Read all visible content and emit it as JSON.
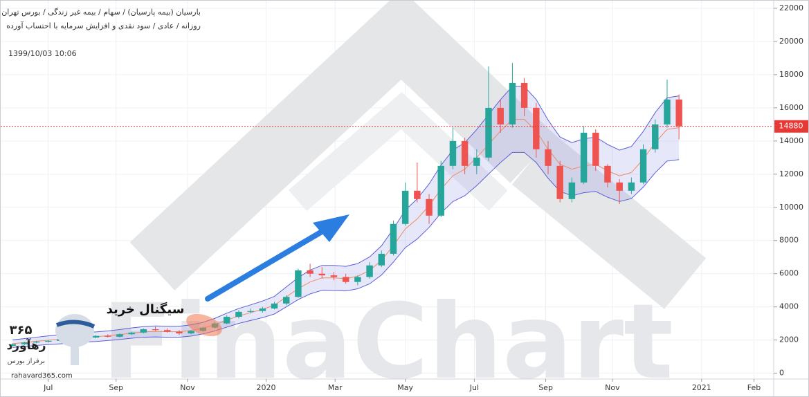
{
  "header": {
    "symbol": "بارسیان (بیمه پارسیان) / سهام / بیمه غیر زندگی / بورس تهران",
    "settings": "روزانه / عادی / سود نقدی و افزایش سرمایه با احتساب آورده",
    "timestamp": "1399/10/03 10:06"
  },
  "annotation": "سیگنال خرید",
  "watermark": "FinaChart",
  "logo": {
    "number": "۳۶۵",
    "name": "رهآورد",
    "tagline": "برفراز بورس",
    "url": "rahavard365.com"
  },
  "chart_data": {
    "type": "candlestick",
    "x": [
      -30,
      -20,
      -10,
      0,
      10,
      20,
      30,
      40,
      50,
      60,
      70,
      80,
      90,
      100,
      110,
      120,
      130,
      140,
      150,
      160,
      170,
      180,
      190,
      200,
      210,
      220,
      230,
      240,
      250,
      260,
      270,
      280,
      290,
      300,
      310,
      320,
      330,
      340,
      350,
      360,
      370,
      380,
      390,
      400,
      410,
      420,
      430,
      440,
      450,
      460,
      470,
      480,
      490,
      500,
      510,
      520,
      530
    ],
    "open": [
      1650,
      1750,
      1850,
      1900,
      1950,
      2050,
      2000,
      2150,
      2250,
      2200,
      2350,
      2450,
      2650,
      2600,
      2500,
      2400,
      2550,
      2750,
      3000,
      3400,
      3700,
      3750,
      3900,
      4200,
      4600,
      6200,
      6000,
      5900,
      5800,
      5500,
      5800,
      6500,
      7200,
      9000,
      11000,
      10500,
      9500,
      12500,
      14000,
      12500,
      13000,
      16000,
      15000,
      17500,
      16000,
      13500,
      12500,
      10500,
      11500,
      14500,
      12500,
      11500,
      11000,
      11500,
      13500,
      15000,
      16500
    ],
    "high": [
      1800,
      1900,
      1950,
      2000,
      2100,
      2150,
      2200,
      2300,
      2350,
      2400,
      2500,
      2700,
      2800,
      2700,
      2600,
      2600,
      2800,
      3100,
      3500,
      3800,
      3900,
      4000,
      4300,
      4700,
      6300,
      6600,
      6400,
      6100,
      6000,
      5900,
      6700,
      7400,
      9200,
      11500,
      12700,
      10800,
      12800,
      14800,
      14200,
      13500,
      18500,
      16500,
      18700,
      17800,
      16300,
      14000,
      12800,
      11800,
      14900,
      14700,
      12600,
      11700,
      11800,
      13800,
      15300,
      17700,
      16800
    ],
    "low": [
      1600,
      1700,
      1800,
      1850,
      1900,
      1950,
      1950,
      2100,
      2150,
      2150,
      2300,
      2400,
      2550,
      2450,
      2300,
      2350,
      2500,
      2700,
      2950,
      3300,
      3600,
      3650,
      3850,
      4100,
      4550,
      5800,
      5700,
      5600,
      5400,
      5300,
      5700,
      6400,
      7100,
      8900,
      10300,
      9000,
      9400,
      12300,
      12000,
      12000,
      12800,
      14500,
      14800,
      15500,
      13000,
      12000,
      10300,
      10300,
      11400,
      12200,
      11200,
      10200,
      10800,
      11400,
      13300,
      14800,
      14100
    ],
    "close": [
      1750,
      1850,
      1900,
      1950,
      2050,
      2000,
      2150,
      2250,
      2200,
      2350,
      2450,
      2650,
      2600,
      2500,
      2400,
      2550,
      2750,
      3000,
      3400,
      3700,
      3750,
      3900,
      4200,
      4600,
      6200,
      6000,
      5900,
      5800,
      5500,
      5800,
      6500,
      7200,
      9000,
      11000,
      10500,
      9500,
      12500,
      14000,
      12500,
      13000,
      16000,
      15000,
      17500,
      16000,
      13500,
      12500,
      10500,
      11500,
      14500,
      12500,
      11500,
      11000,
      11500,
      13500,
      15000,
      16500,
      14880
    ],
    "up_color": "#26a69a",
    "down_color": "#ef5350",
    "band_middle": [
      1780,
      1850,
      1920,
      1990,
      2040,
      2090,
      2160,
      2200,
      2260,
      2330,
      2420,
      2490,
      2520,
      2500,
      2500,
      2580,
      2720,
      2930,
      3200,
      3450,
      3650,
      3850,
      4100,
      4600,
      5100,
      5500,
      5750,
      5750,
      5700,
      5850,
      6200,
      6800,
      7700,
      8700,
      9300,
      10100,
      11100,
      11900,
      12300,
      13000,
      13800,
      14600,
      15300,
      15300,
      14600,
      13500,
      12600,
      12300,
      12500,
      12600,
      12200,
      11900,
      12100,
      12900,
      13900,
      14700,
      14800
    ],
    "band_upper": [
      2010,
      2090,
      2170,
      2250,
      2310,
      2360,
      2440,
      2490,
      2550,
      2630,
      2730,
      2810,
      2850,
      2830,
      2830,
      2920,
      3070,
      3310,
      3620,
      3900,
      4120,
      4350,
      4630,
      5200,
      5760,
      6220,
      6500,
      6500,
      6440,
      6610,
      7010,
      7680,
      8700,
      9830,
      10510,
      11410,
      12540,
      13450,
      13900,
      14690,
      15590,
      16500,
      17290,
      17290,
      16500,
      15260,
      14240,
      13900,
      14130,
      14240,
      13790,
      13450,
      13670,
      14580,
      15710,
      16610,
      16720
    ],
    "band_lower": [
      1550,
      1610,
      1670,
      1730,
      1770,
      1820,
      1880,
      1910,
      1970,
      2030,
      2110,
      2170,
      2190,
      2170,
      2170,
      2240,
      2370,
      2550,
      2780,
      3000,
      3180,
      3350,
      3570,
      4000,
      4440,
      4780,
      5000,
      5000,
      4960,
      5090,
      5390,
      5920,
      6700,
      7570,
      8090,
      8790,
      9660,
      10350,
      10700,
      11310,
      12010,
      12700,
      13310,
      13310,
      12700,
      11750,
      10960,
      10700,
      10880,
      10960,
      10610,
      10350,
      10530,
      11220,
      12090,
      12790,
      12880
    ],
    "band_color": "#5b5fd6",
    "band_fill": "rgba(120,120,230,0.18)",
    "middle_color": "#f08a5d",
    "last_price": 14880,
    "last_price_color": "#e53935",
    "xlim": [
      -40,
      609
    ],
    "xticks": [
      {
        "value": 0,
        "label": "Jul"
      },
      {
        "value": 57,
        "label": "Sep"
      },
      {
        "value": 117,
        "label": "Nov"
      },
      {
        "value": 183,
        "label": "2020"
      },
      {
        "value": 241,
        "label": "Mar"
      },
      {
        "value": 300,
        "label": "May"
      },
      {
        "value": 358,
        "label": "Jul"
      },
      {
        "value": 418,
        "label": "Sep"
      },
      {
        "value": 474,
        "label": "Nov"
      },
      {
        "value": 549,
        "label": "2021"
      },
      {
        "value": 593,
        "label": "Feb"
      }
    ],
    "ylim": [
      -350,
      22500
    ],
    "yticks": [
      0,
      2000,
      4000,
      6000,
      8000,
      10000,
      12000,
      14000,
      16000,
      18000,
      20000,
      22000
    ],
    "grid": true
  }
}
